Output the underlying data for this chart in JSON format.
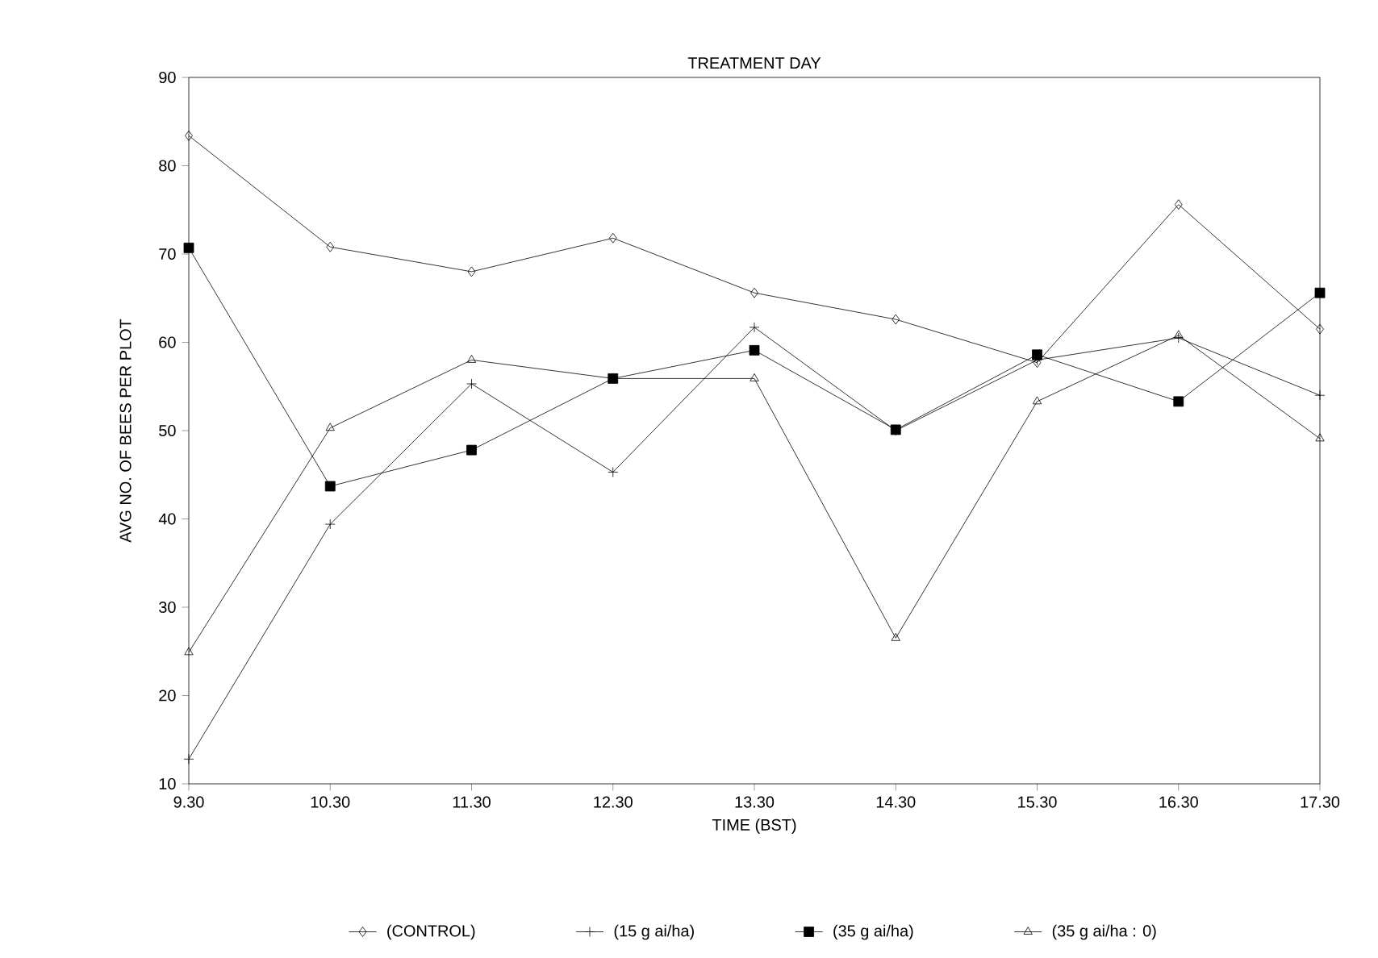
{
  "chart_data": {
    "type": "line",
    "title": "TREATMENT DAY",
    "xlabel": "TIME (BST)",
    "ylabel": "AVG NO. OF BEES PER PLOT",
    "categories": [
      "9.30",
      "10.30",
      "11.30",
      "12.30",
      "13.30",
      "14.30",
      "15.30",
      "16.30",
      "17.30"
    ],
    "ylim": [
      10,
      90
    ],
    "yticks": [
      10,
      20,
      30,
      40,
      50,
      60,
      70,
      80,
      90
    ],
    "grid": false,
    "legend": "bottom",
    "line_style": "solid",
    "series": [
      {
        "name": "(CONTROL)",
        "color": "#000000",
        "marker": "diamond",
        "values": [
          83.4,
          70.8,
          68.0,
          71.8,
          65.6,
          62.6,
          57.7,
          75.6,
          61.5
        ]
      },
      {
        "name": "(15 g ai/ha)",
        "color": "#000000",
        "marker": "cross",
        "values": [
          12.8,
          39.4,
          55.3,
          45.3,
          61.7,
          50.0,
          58.0,
          60.5,
          54.0
        ]
      },
      {
        "name": "(35 g ai/ha)",
        "color": "#000000",
        "marker": "square",
        "values": [
          70.7,
          43.7,
          47.8,
          55.9,
          59.1,
          50.1,
          58.6,
          53.3,
          65.6
        ]
      },
      {
        "name": "(35 g ai/ha : 0)",
        "color": "#000000",
        "marker": "triangle",
        "values": [
          24.9,
          50.3,
          58.0,
          55.9,
          55.9,
          26.5,
          53.3,
          60.8,
          49.1
        ]
      }
    ]
  }
}
